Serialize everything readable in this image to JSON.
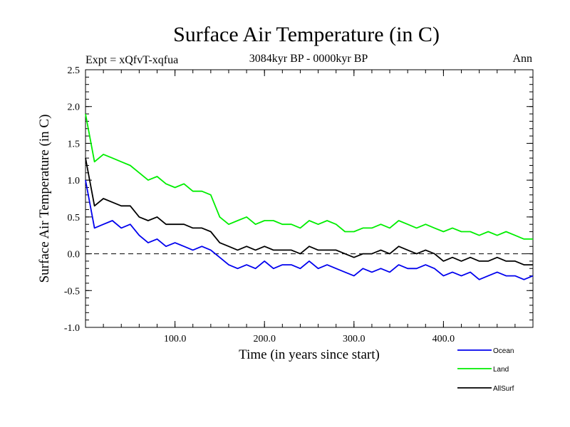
{
  "chart_data": {
    "type": "line",
    "title": "Surface Air Temperature (in C)",
    "subtitle": "3084kyr BP - 0000kyr BP",
    "left_annotation": "Expt = xQfvT-xqfua",
    "right_annotation": "Ann",
    "xlabel": "Time (in years since start)",
    "ylabel": "Surface Air Temperature (in C)",
    "xlim": [
      0,
      500
    ],
    "ylim": [
      -1.0,
      2.5
    ],
    "x_ticks": [
      100,
      200,
      300,
      400
    ],
    "x_tick_labels": [
      "100.0",
      "200.0",
      "300.0",
      "400.0"
    ],
    "y_ticks": [
      -1.0,
      -0.5,
      0.0,
      0.5,
      1.0,
      1.5,
      2.0,
      2.5
    ],
    "y_tick_labels": [
      "-1.0",
      "-0.5",
      "0.0",
      "0.5",
      "1.0",
      "1.5",
      "2.0",
      "2.5"
    ],
    "reference_line": 0.0,
    "legend_position": "bottom-right",
    "series": [
      {
        "name": "Ocean",
        "color": "#0000ee",
        "x": [
          0,
          10,
          20,
          30,
          40,
          50,
          60,
          70,
          80,
          90,
          100,
          110,
          120,
          130,
          140,
          150,
          160,
          170,
          180,
          190,
          200,
          210,
          220,
          230,
          240,
          250,
          260,
          270,
          280,
          290,
          300,
          310,
          320,
          330,
          340,
          350,
          360,
          370,
          380,
          390,
          400,
          410,
          420,
          430,
          440,
          450,
          460,
          470,
          480,
          490,
          500
        ],
        "values": [
          1.0,
          0.35,
          0.4,
          0.45,
          0.35,
          0.4,
          0.25,
          0.15,
          0.2,
          0.1,
          0.15,
          0.1,
          0.05,
          0.1,
          0.05,
          -0.05,
          -0.15,
          -0.2,
          -0.15,
          -0.2,
          -0.1,
          -0.2,
          -0.15,
          -0.15,
          -0.2,
          -0.1,
          -0.2,
          -0.15,
          -0.2,
          -0.25,
          -0.3,
          -0.2,
          -0.25,
          -0.2,
          -0.25,
          -0.15,
          -0.2,
          -0.2,
          -0.15,
          -0.2,
          -0.3,
          -0.25,
          -0.3,
          -0.25,
          -0.35,
          -0.3,
          -0.25,
          -0.3,
          -0.3,
          -0.35,
          -0.3
        ]
      },
      {
        "name": "Land",
        "color": "#00ee00",
        "x": [
          0,
          10,
          20,
          30,
          40,
          50,
          60,
          70,
          80,
          90,
          100,
          110,
          120,
          130,
          140,
          150,
          160,
          170,
          180,
          190,
          200,
          210,
          220,
          230,
          240,
          250,
          260,
          270,
          280,
          290,
          300,
          310,
          320,
          330,
          340,
          350,
          360,
          370,
          380,
          390,
          400,
          410,
          420,
          430,
          440,
          450,
          460,
          470,
          480,
          490,
          500
        ],
        "values": [
          1.9,
          1.25,
          1.35,
          1.3,
          1.25,
          1.2,
          1.1,
          1.0,
          1.05,
          0.95,
          0.9,
          0.95,
          0.85,
          0.85,
          0.8,
          0.5,
          0.4,
          0.45,
          0.5,
          0.4,
          0.45,
          0.45,
          0.4,
          0.4,
          0.35,
          0.45,
          0.4,
          0.45,
          0.4,
          0.3,
          0.3,
          0.35,
          0.35,
          0.4,
          0.35,
          0.45,
          0.4,
          0.35,
          0.4,
          0.35,
          0.3,
          0.35,
          0.3,
          0.3,
          0.25,
          0.3,
          0.25,
          0.3,
          0.25,
          0.2,
          0.2
        ]
      },
      {
        "name": "AllSurf",
        "color": "#000000",
        "x": [
          0,
          10,
          20,
          30,
          40,
          50,
          60,
          70,
          80,
          90,
          100,
          110,
          120,
          130,
          140,
          150,
          160,
          170,
          180,
          190,
          200,
          210,
          220,
          230,
          240,
          250,
          260,
          270,
          280,
          290,
          300,
          310,
          320,
          330,
          340,
          350,
          360,
          370,
          380,
          390,
          400,
          410,
          420,
          430,
          440,
          450,
          460,
          470,
          480,
          490,
          500
        ],
        "values": [
          1.3,
          0.65,
          0.75,
          0.7,
          0.65,
          0.65,
          0.5,
          0.45,
          0.5,
          0.4,
          0.4,
          0.4,
          0.35,
          0.35,
          0.3,
          0.15,
          0.1,
          0.05,
          0.1,
          0.05,
          0.1,
          0.05,
          0.05,
          0.05,
          0.0,
          0.1,
          0.05,
          0.05,
          0.05,
          0.0,
          -0.05,
          0.0,
          0.0,
          0.05,
          0.0,
          0.1,
          0.05,
          0.0,
          0.05,
          0.0,
          -0.1,
          -0.05,
          -0.1,
          -0.05,
          -0.1,
          -0.1,
          -0.05,
          -0.1,
          -0.1,
          -0.15,
          -0.15
        ]
      }
    ]
  }
}
